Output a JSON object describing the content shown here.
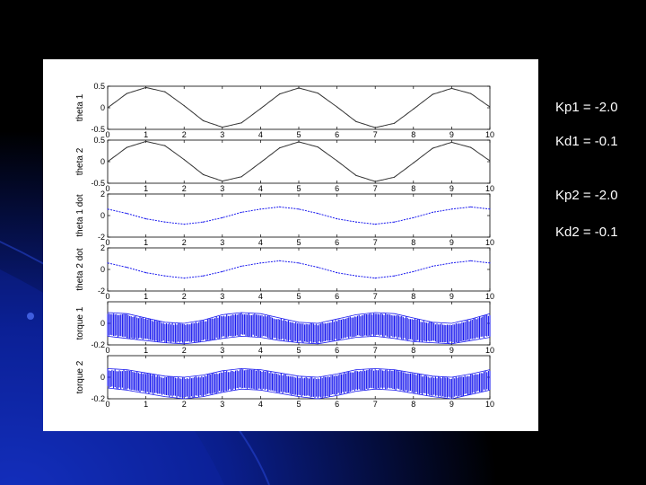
{
  "colors": {
    "background_dark": "#000000",
    "background_blue": "#0a1e8c",
    "trace_black": "#333333",
    "trace_blue": "#1a1aee",
    "text_white": "#ffffff"
  },
  "params": [
    {
      "text": "Kp1 = -2.0"
    },
    {
      "text": "Kd1 = -0.1"
    },
    {
      "text": "Kp2 = -2.0"
    },
    {
      "text": "Kd2 = -0.1"
    }
  ],
  "chart_data": [
    {
      "type": "line",
      "ylabel": "theta 1",
      "xlim": [
        0,
        10
      ],
      "ylim": [
        -0.5,
        0.5
      ],
      "xticks": [
        "0",
        "1",
        "2",
        "3",
        "4",
        "5",
        "6",
        "7",
        "8",
        "9",
        "10"
      ],
      "yticks": [
        {
          "v": 0.5,
          "t": "0.5"
        },
        {
          "v": 0,
          "t": "0"
        },
        {
          "v": -0.5,
          "t": "-0.5"
        }
      ],
      "color": "#333333",
      "x": [
        0,
        0.5,
        1,
        1.5,
        2,
        2.5,
        3,
        3.5,
        4,
        4.5,
        5,
        5.5,
        6,
        6.5,
        7,
        7.5,
        8,
        8.5,
        9,
        9.5,
        10
      ],
      "y": [
        0,
        0.33,
        0.47,
        0.37,
        0.05,
        -0.3,
        -0.45,
        -0.35,
        -0.02,
        0.32,
        0.46,
        0.34,
        0.02,
        -0.32,
        -0.46,
        -0.36,
        -0.03,
        0.31,
        0.45,
        0.33,
        0.02
      ]
    },
    {
      "type": "line",
      "ylabel": "theta 2",
      "xlim": [
        0,
        10
      ],
      "ylim": [
        -0.5,
        0.5
      ],
      "xticks": [
        "0",
        "1",
        "2",
        "3",
        "4",
        "5",
        "6",
        "7",
        "8",
        "9",
        "10"
      ],
      "yticks": [
        {
          "v": 0.5,
          "t": "0.5"
        },
        {
          "v": 0,
          "t": "0"
        },
        {
          "v": -0.5,
          "t": "-0.5"
        }
      ],
      "color": "#333333",
      "x": [
        0,
        0.5,
        1,
        1.5,
        2,
        2.5,
        3,
        3.5,
        4,
        4.5,
        5,
        5.5,
        6,
        6.5,
        7,
        7.5,
        8,
        8.5,
        9,
        9.5,
        10
      ],
      "y": [
        0,
        0.33,
        0.47,
        0.37,
        0.05,
        -0.3,
        -0.45,
        -0.35,
        -0.02,
        0.32,
        0.46,
        0.34,
        0.02,
        -0.32,
        -0.46,
        -0.36,
        -0.03,
        0.31,
        0.45,
        0.33,
        0.02
      ]
    },
    {
      "type": "line",
      "ylabel": "theta 1 dot",
      "xlim": [
        0,
        10
      ],
      "ylim": [
        -2,
        2
      ],
      "xticks": [
        "0",
        "1",
        "2",
        "3",
        "4",
        "5",
        "6",
        "7",
        "8",
        "9",
        "10"
      ],
      "yticks": [
        {
          "v": 2,
          "t": "2"
        },
        {
          "v": 0,
          "t": "0"
        },
        {
          "v": -2,
          "t": "-2"
        }
      ],
      "color": "#1a1aee",
      "x": [
        0,
        0.5,
        1,
        1.5,
        2,
        2.5,
        3,
        3.5,
        4,
        4.5,
        5,
        5.5,
        6,
        6.5,
        7,
        7.5,
        8,
        8.5,
        9,
        9.5,
        10
      ],
      "y": [
        0.6,
        0.2,
        -0.3,
        -0.6,
        -0.8,
        -0.6,
        -0.2,
        0.3,
        0.6,
        0.8,
        0.6,
        0.2,
        -0.3,
        -0.6,
        -0.8,
        -0.6,
        -0.2,
        0.3,
        0.6,
        0.8,
        0.6
      ]
    },
    {
      "type": "line",
      "ylabel": "theta 2 dot",
      "xlim": [
        0,
        10
      ],
      "ylim": [
        -2,
        2
      ],
      "xticks": [
        "0",
        "1",
        "2",
        "3",
        "4",
        "5",
        "6",
        "7",
        "8",
        "9",
        "10"
      ],
      "yticks": [
        {
          "v": 2,
          "t": "2"
        },
        {
          "v": 0,
          "t": "0"
        },
        {
          "v": -2,
          "t": "-2"
        }
      ],
      "color": "#1a1aee",
      "x": [
        0,
        0.5,
        1,
        1.5,
        2,
        2.5,
        3,
        3.5,
        4,
        4.5,
        5,
        5.5,
        6,
        6.5,
        7,
        7.5,
        8,
        8.5,
        9,
        9.5,
        10
      ],
      "y": [
        0.6,
        0.2,
        -0.3,
        -0.6,
        -0.8,
        -0.6,
        -0.2,
        0.3,
        0.6,
        0.8,
        0.6,
        0.2,
        -0.3,
        -0.6,
        -0.8,
        -0.6,
        -0.2,
        0.3,
        0.6,
        0.8,
        0.6
      ]
    },
    {
      "type": "line",
      "ylabel": "torque 1",
      "xlim": [
        0,
        10
      ],
      "ylim": [
        -0.2,
        0.2
      ],
      "xticks": [
        "0",
        "1",
        "2",
        "3",
        "4",
        "5",
        "6",
        "7",
        "8",
        "9",
        "10"
      ],
      "yticks": [
        {
          "v": 0,
          "t": "0"
        },
        {
          "v": -0.2,
          "t": "-0.2"
        }
      ],
      "color": "#1a1aee",
      "x": [
        0,
        0.5,
        1,
        1.5,
        2,
        2.5,
        3,
        3.5,
        4,
        4.5,
        5,
        5.5,
        6,
        6.5,
        7,
        7.5,
        8,
        8.5,
        9,
        9.5,
        10
      ],
      "y_upper": [
        0.1,
        0.09,
        0.05,
        0.01,
        0.0,
        0.03,
        0.08,
        0.1,
        0.09,
        0.05,
        0.01,
        0.0,
        0.04,
        0.08,
        0.1,
        0.09,
        0.05,
        0.01,
        0.0,
        0.04,
        0.09
      ],
      "y_lower": [
        -0.12,
        -0.14,
        -0.16,
        -0.18,
        -0.19,
        -0.17,
        -0.14,
        -0.12,
        -0.13,
        -0.16,
        -0.18,
        -0.19,
        -0.16,
        -0.13,
        -0.12,
        -0.14,
        -0.17,
        -0.18,
        -0.19,
        -0.16,
        -0.13
      ]
    },
    {
      "type": "line",
      "ylabel": "torque 2",
      "xlim": [
        0,
        10
      ],
      "ylim": [
        -0.2,
        0.2
      ],
      "xticks": [
        "0",
        "1",
        "2",
        "3",
        "4",
        "5",
        "6",
        "7",
        "8",
        "9",
        "10"
      ],
      "yticks": [
        {
          "v": 0,
          "t": "0"
        },
        {
          "v": -0.2,
          "t": "-0.2"
        }
      ],
      "color": "#1a1aee",
      "x": [
        0,
        0.5,
        1,
        1.5,
        2,
        2.5,
        3,
        3.5,
        4,
        4.5,
        5,
        5.5,
        6,
        6.5,
        7,
        7.5,
        8,
        8.5,
        9,
        9.5,
        10
      ],
      "y_upper": [
        0.08,
        0.07,
        0.04,
        0.01,
        0.0,
        0.02,
        0.06,
        0.08,
        0.07,
        0.04,
        0.01,
        0.0,
        0.03,
        0.07,
        0.08,
        0.07,
        0.04,
        0.01,
        0.0,
        0.03,
        0.07
      ],
      "y_lower": [
        -0.1,
        -0.12,
        -0.15,
        -0.18,
        -0.2,
        -0.18,
        -0.14,
        -0.11,
        -0.12,
        -0.15,
        -0.18,
        -0.2,
        -0.17,
        -0.13,
        -0.11,
        -0.12,
        -0.15,
        -0.18,
        -0.2,
        -0.16,
        -0.12
      ]
    }
  ]
}
